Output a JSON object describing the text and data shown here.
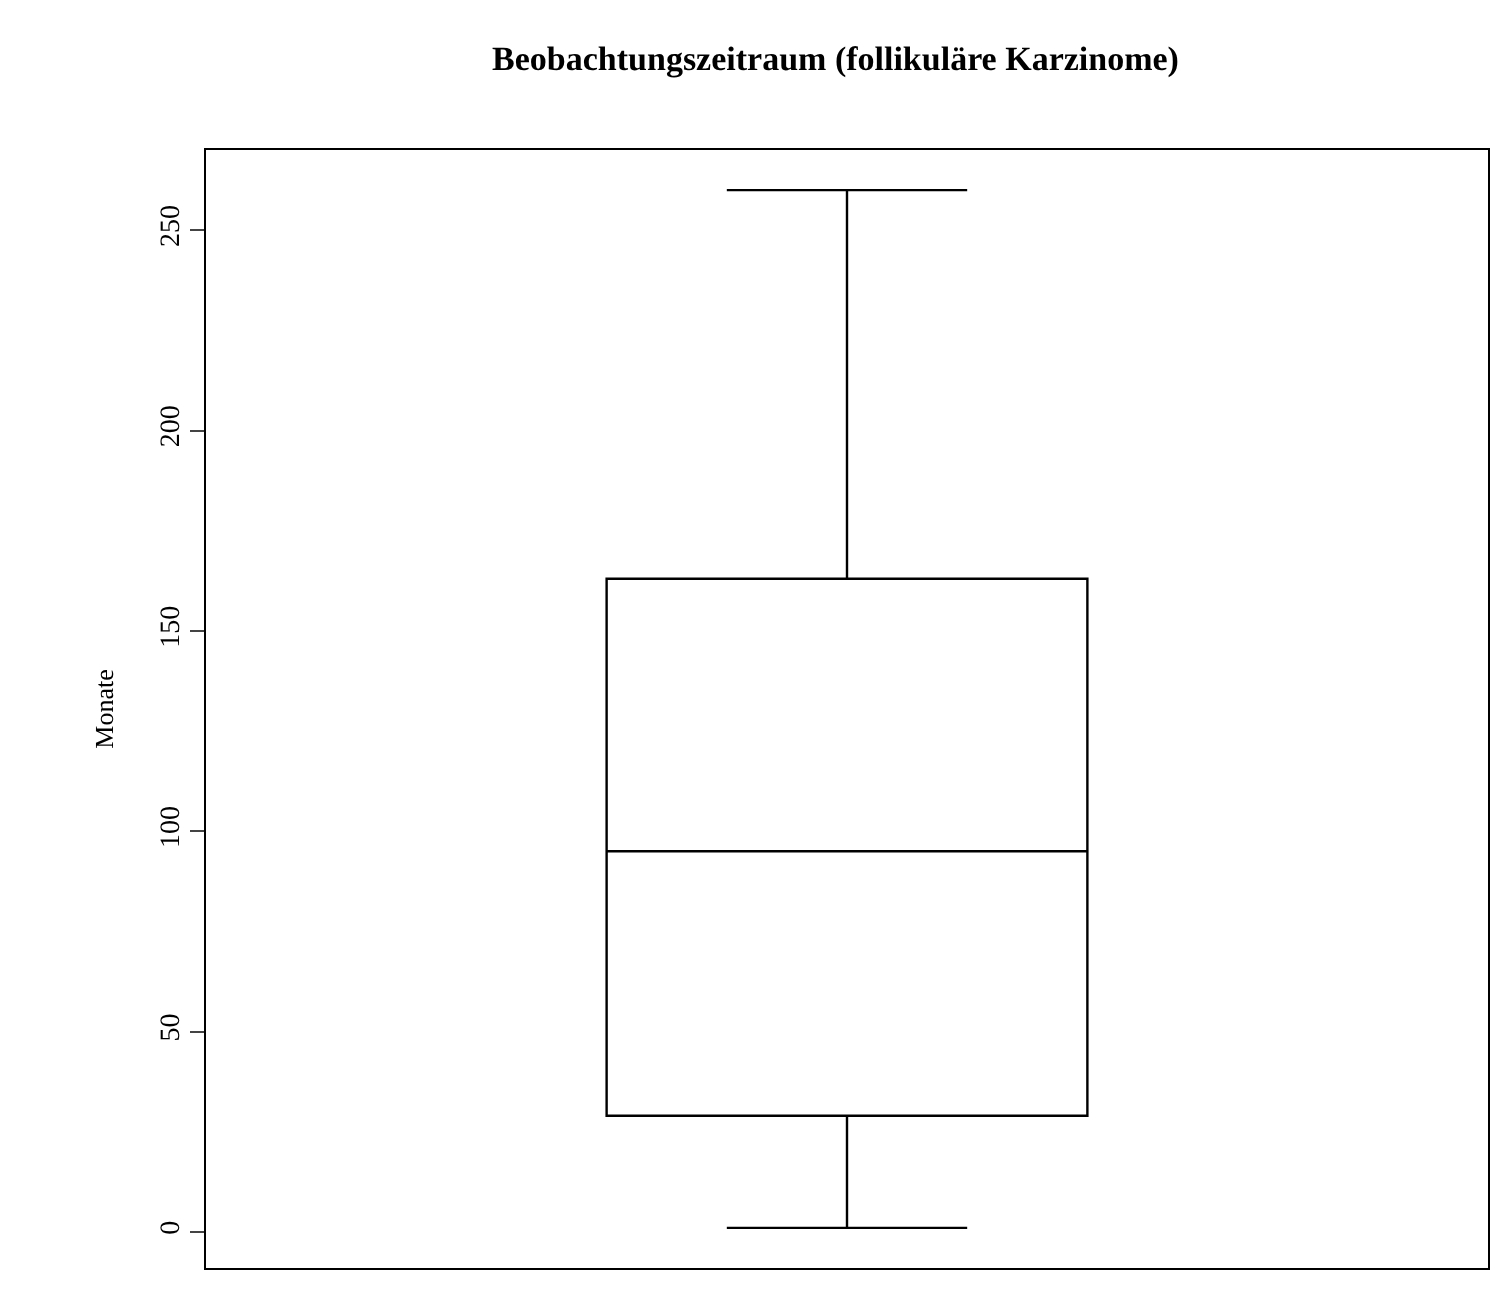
{
  "chart_data": {
    "type": "box",
    "title": "Beobachtungszeitraum (follikuläre Karzinome)",
    "ylabel": "Monate",
    "categories": [
      null
    ],
    "boxes": [
      {
        "low": 1,
        "q1": 29,
        "median": 95,
        "q3": 163,
        "high": 260
      }
    ],
    "color": "#000000",
    "ylim": [
      -9,
      270
    ],
    "yticks": [
      0,
      50,
      100,
      150,
      200,
      250
    ]
  }
}
